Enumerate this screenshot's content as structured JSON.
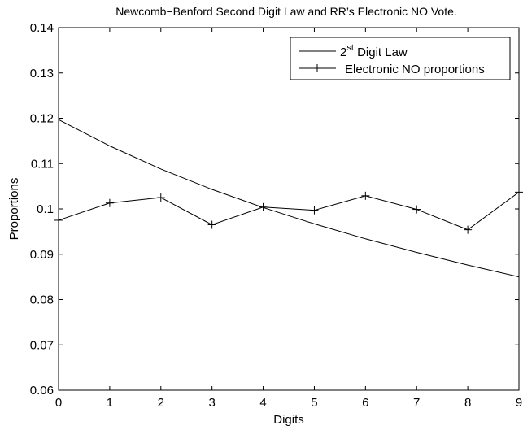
{
  "chart_data": {
    "type": "line",
    "title": "Newcomb−Benford Second Digit Law and  RR’s Electronic NO Vote.",
    "xlabel": "Digits",
    "ylabel": "Proportions",
    "xlim": [
      0,
      9
    ],
    "ylim": [
      0.06,
      0.14
    ],
    "x_ticks": [
      "0",
      "1",
      "2",
      "3",
      "4",
      "5",
      "6",
      "7",
      "8",
      "9"
    ],
    "y_ticks": [
      "0.06",
      "0.07",
      "0.08",
      "0.09",
      "0.1",
      "0.11",
      "0.12",
      "0.13",
      "0.14"
    ],
    "grid": false,
    "legend_position": "top-right",
    "x": [
      0,
      1,
      2,
      3,
      4,
      5,
      6,
      7,
      8,
      9
    ],
    "series": [
      {
        "name": "2nd Digit Law",
        "legend_main": "2",
        "legend_sup": "st",
        "legend_rest": " Digit Law",
        "marker": "none",
        "color": "#000000",
        "values": [
          0.1197,
          0.1139,
          0.1088,
          0.1043,
          0.1003,
          0.0967,
          0.0934,
          0.0904,
          0.0876,
          0.085
        ]
      },
      {
        "name": "Electronic NO proportions",
        "marker": "plus",
        "color": "#000000",
        "values": [
          0.0975,
          0.1013,
          0.1025,
          0.0965,
          0.1004,
          0.0997,
          0.1029,
          0.0999,
          0.0954,
          0.1037
        ]
      }
    ]
  }
}
